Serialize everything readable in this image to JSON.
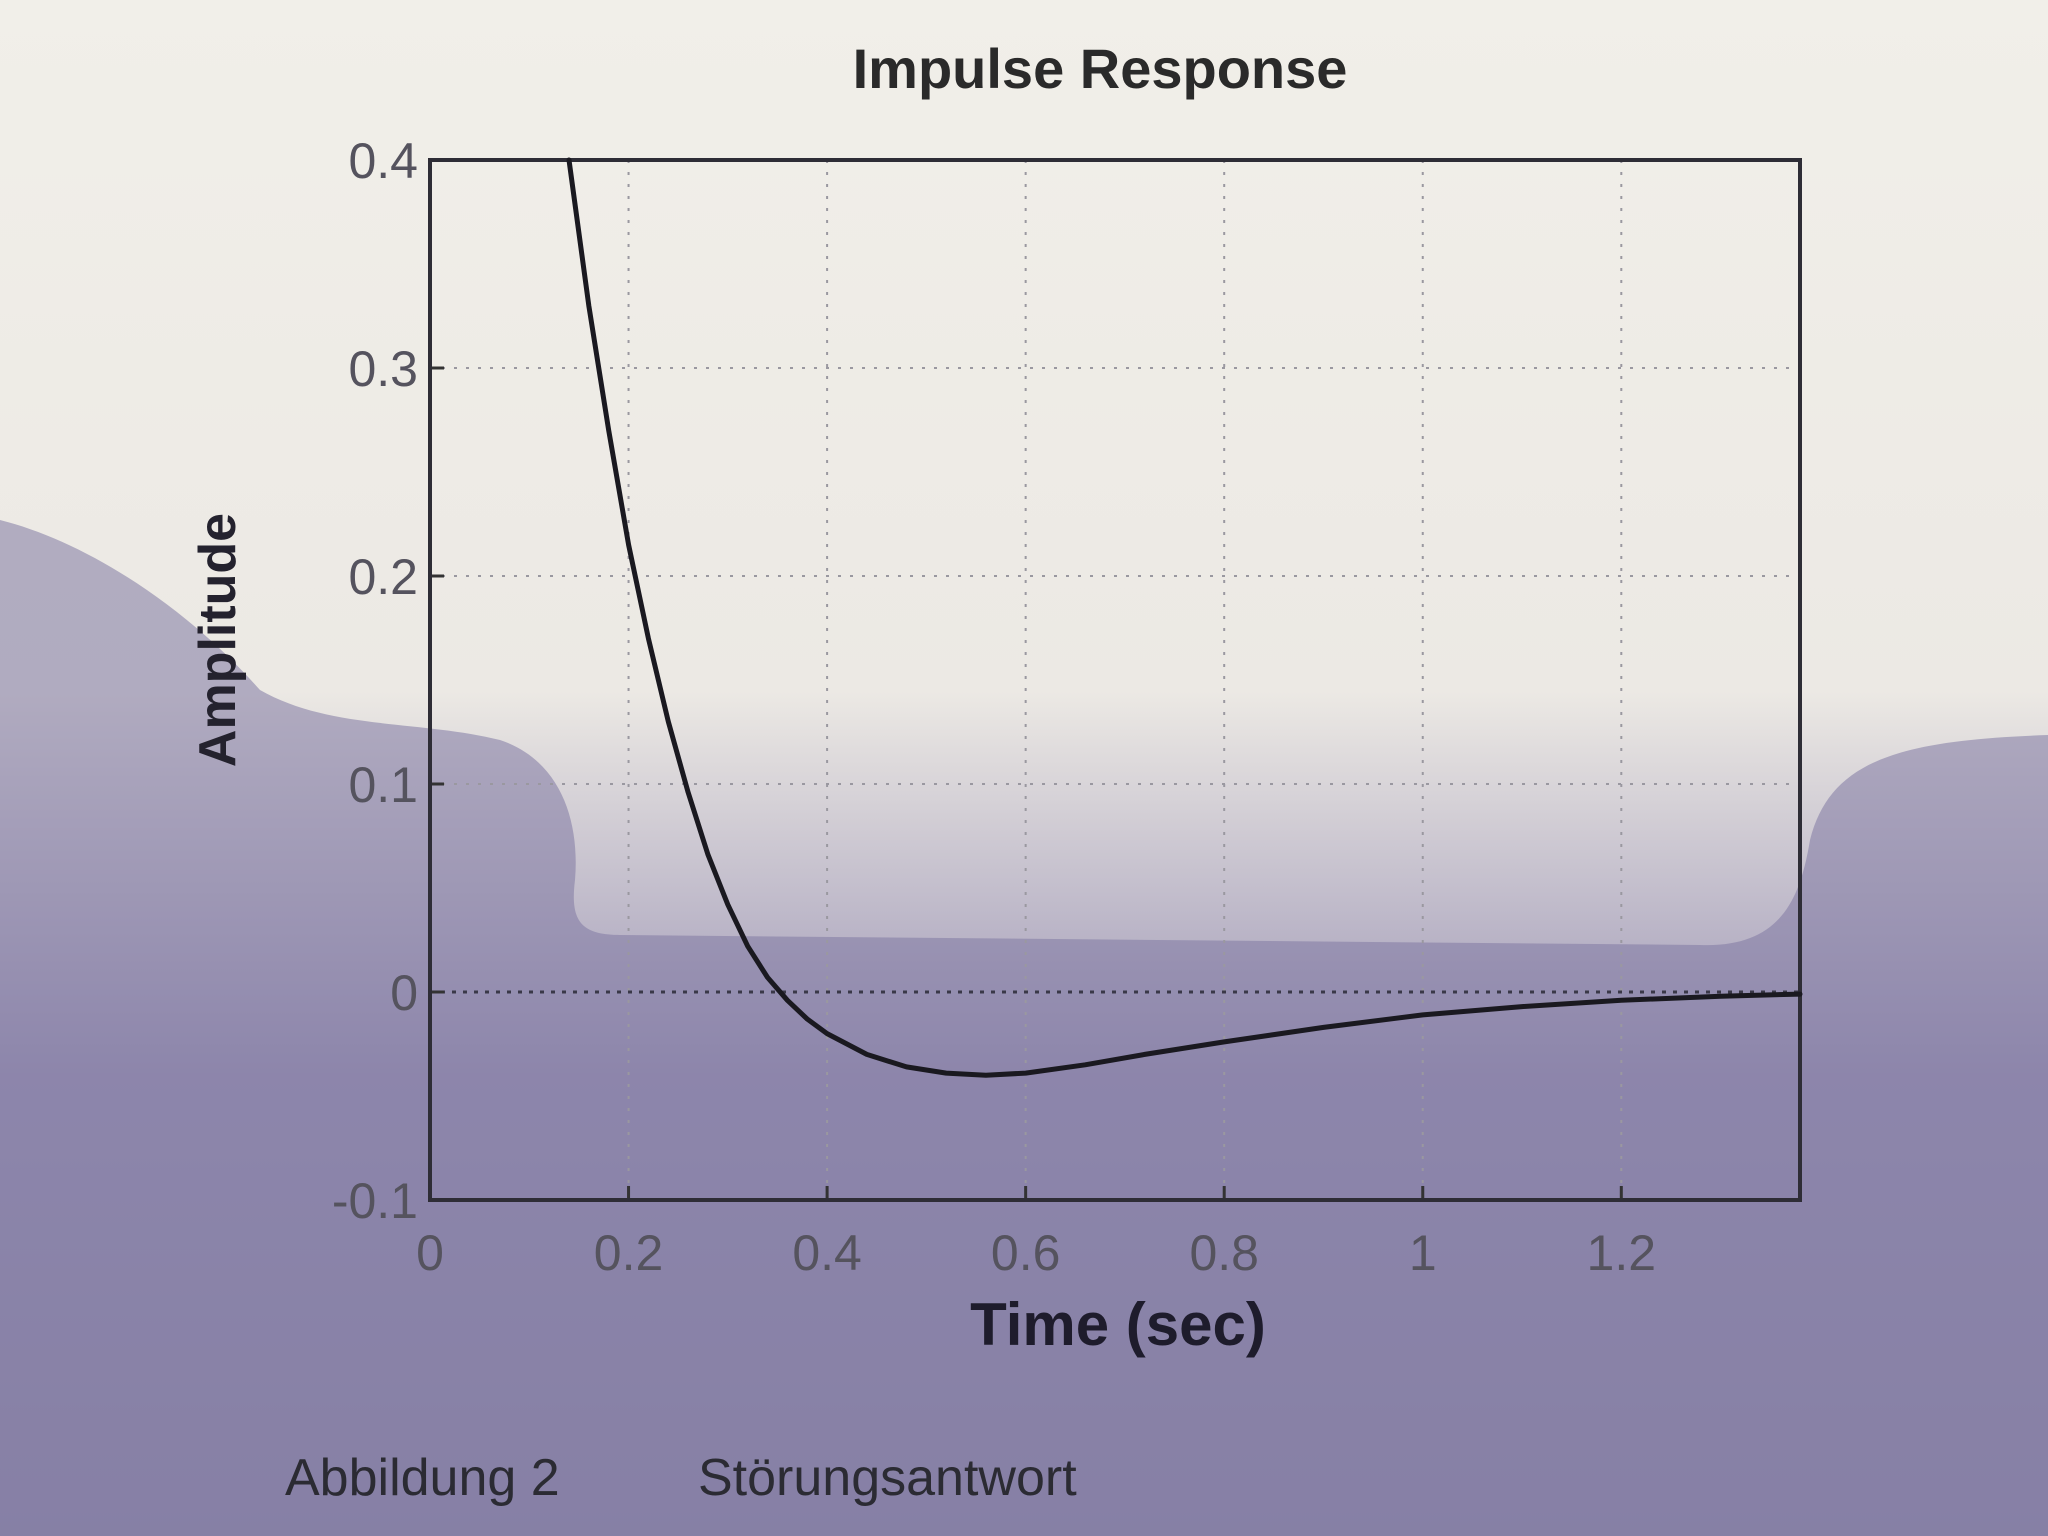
{
  "chart_data": {
    "type": "line",
    "title": "Impulse Response",
    "xlabel": "Time (sec)",
    "ylabel": "Amplitude",
    "xlim": [
      0,
      1.38
    ],
    "ylim": [
      -0.1,
      0.4
    ],
    "xticks": [
      "0",
      "0.2",
      "0.4",
      "0.6",
      "0.8",
      "1",
      "1.2"
    ],
    "yticks": [
      "-0.1",
      "0",
      "0.1",
      "0.2",
      "0.3",
      "0.4"
    ],
    "grid": true,
    "series": [
      {
        "x": [
          0.14,
          0.16,
          0.18,
          0.2,
          0.22,
          0.24,
          0.26,
          0.28,
          0.3,
          0.32,
          0.34,
          0.36,
          0.38,
          0.4,
          0.44,
          0.48,
          0.52,
          0.56,
          0.6,
          0.66,
          0.72,
          0.8,
          0.9,
          1.0,
          1.1,
          1.2,
          1.3,
          1.38
        ],
        "y": [
          0.4,
          0.33,
          0.27,
          0.215,
          0.17,
          0.13,
          0.096,
          0.066,
          0.042,
          0.022,
          0.007,
          -0.004,
          -0.013,
          -0.02,
          -0.03,
          -0.036,
          -0.039,
          -0.04,
          -0.039,
          -0.035,
          -0.03,
          -0.024,
          -0.017,
          -0.011,
          -0.007,
          -0.004,
          -0.002,
          -0.001
        ]
      }
    ]
  },
  "caption": {
    "figure_number": "Abbildung 2",
    "figure_title": "Störungsantwort"
  }
}
